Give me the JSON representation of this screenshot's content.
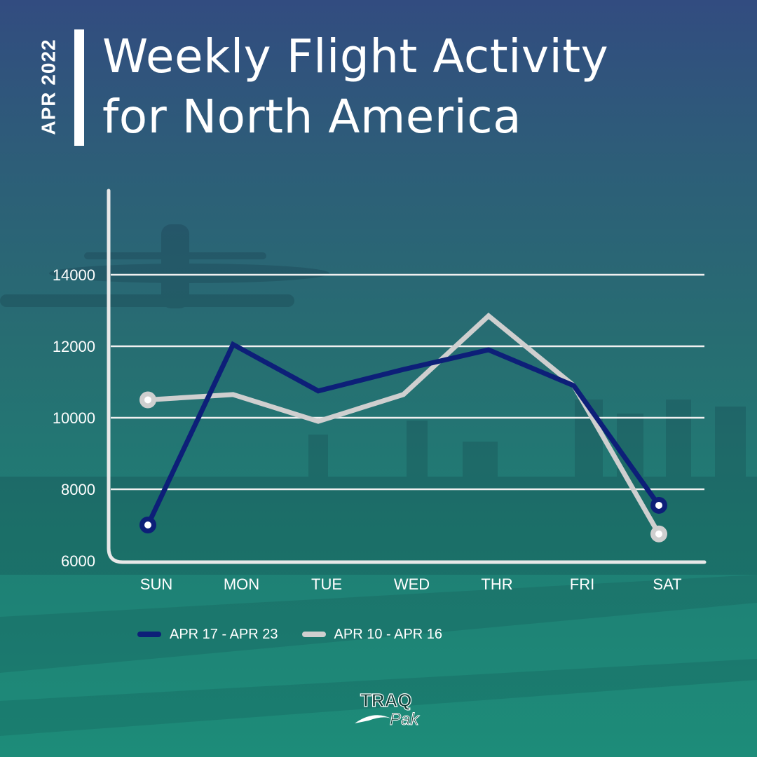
{
  "header": {
    "date_label": "APR 2022",
    "title_line1": "Weekly Flight Activity",
    "title_line2": "for North America"
  },
  "logo": {
    "word1": "TRAQ",
    "word2": "Pak"
  },
  "colors": {
    "series1": "#0d1f78",
    "series2": "#cfcfcf",
    "axis": "#e8e8e8",
    "grid": "#f0f0f0"
  },
  "chart_data": {
    "type": "line",
    "title": "Weekly Flight Activity for North America",
    "categories": [
      "SUN",
      "MON",
      "TUE",
      "WED",
      "THR",
      "FRI",
      "SAT"
    ],
    "yticks": [
      14000,
      12000,
      10000,
      8000,
      6000
    ],
    "ylim": [
      6000,
      16000
    ],
    "grid": true,
    "legend_position": "bottom-left",
    "series": [
      {
        "name": "APR 17 - APR 23",
        "values": [
          7000,
          12050,
          10750,
          11350,
          11900,
          10900,
          7550
        ]
      },
      {
        "name": "APR 10 - APR 16",
        "values": [
          10500,
          10650,
          9900,
          10650,
          12850,
          10900,
          6750
        ]
      }
    ]
  }
}
